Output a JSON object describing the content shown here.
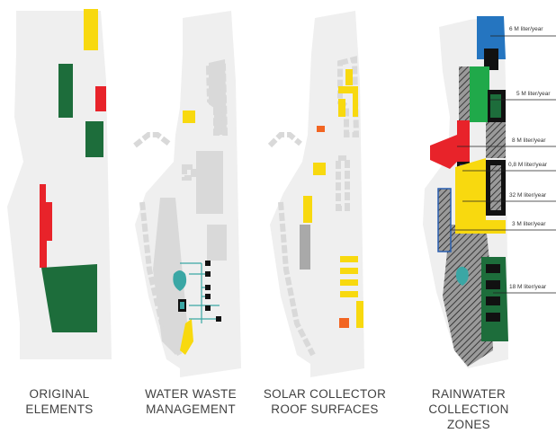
{
  "panels": [
    {
      "caption": [
        "ORIGINAL",
        "ELEMENTS"
      ]
    },
    {
      "caption": [
        "WATER WASTE",
        "MANAGEMENT"
      ]
    },
    {
      "caption": [
        "SOLAR COLLECTOR",
        "ROOF SURFACES"
      ]
    },
    {
      "caption": [
        "RAINWATER",
        "COLLECTION",
        "ZONES"
      ]
    }
  ],
  "rainwater_volumes": [
    "6 M liter/year",
    "5 M liter/year",
    "8 M liter/year",
    "0,8 M liter/year",
    "32 M liter/year",
    "3 M liter/year",
    "18 M liter/year"
  ],
  "colors": {
    "site": "#efefef",
    "building_grey": "#d9d9d9",
    "dark_grey": "#a9a9a9",
    "yellow": "#f8d90f",
    "red": "#e8232a",
    "green": "#1d6d3b",
    "bright_green": "#20a94a",
    "blue": "#2575c0",
    "teal": "#3aa7a5",
    "orange": "#f26522",
    "black": "#111111"
  }
}
